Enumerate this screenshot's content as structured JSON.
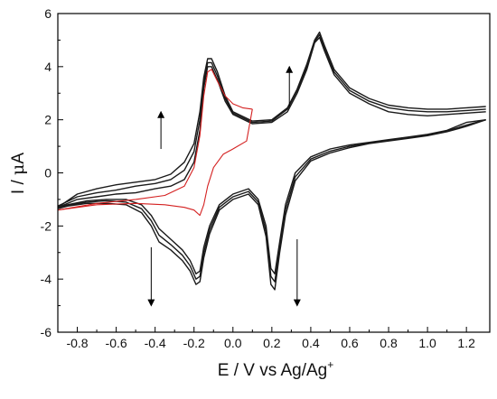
{
  "chart_data": {
    "type": "line",
    "title": "",
    "xlabel": "E / V vs Ag/Ag",
    "xlabel_sup": "+",
    "ylabel_prefix": "I / ",
    "ylabel_mu": "μ",
    "ylabel_unit": "A",
    "xlim": [
      -0.9,
      1.32
    ],
    "ylim": [
      -6,
      6
    ],
    "xticks": [
      -0.8,
      -0.6,
      -0.4,
      -0.2,
      0.0,
      0.2,
      0.4,
      0.6,
      0.8,
      1.0,
      1.2
    ],
    "xtick_labels": [
      "-0.8",
      "-0.6",
      "-0.4",
      "-0.2",
      "0.0",
      "0.2",
      "0.4",
      "0.6",
      "0.8",
      "1.0",
      "1.2"
    ],
    "yticks": [
      -6,
      -4,
      -2,
      0,
      2,
      4,
      6
    ],
    "ytick_labels": [
      "-6",
      "-4",
      "-2",
      "0",
      "2",
      "4",
      "6"
    ],
    "grid": false,
    "legend": "none",
    "colors": {
      "series_black": "#1a1a1a",
      "series_red": "#d42020",
      "axis": "#000000"
    },
    "series": [
      {
        "color": "#1a1a1a",
        "forward": [
          [
            -0.9,
            -1.3
          ],
          [
            -0.8,
            -1.0
          ],
          [
            -0.7,
            -0.9
          ],
          [
            -0.6,
            -0.8
          ],
          [
            -0.5,
            -0.75
          ],
          [
            -0.4,
            -0.6
          ],
          [
            -0.32,
            -0.5
          ],
          [
            -0.25,
            -0.25
          ],
          [
            -0.2,
            0.4
          ],
          [
            -0.17,
            1.6
          ],
          [
            -0.15,
            3.2
          ],
          [
            -0.13,
            4.0
          ],
          [
            -0.11,
            4.0
          ],
          [
            -0.08,
            3.5
          ],
          [
            -0.04,
            2.7
          ],
          [
            0.0,
            2.2
          ],
          [
            0.1,
            1.85
          ],
          [
            0.2,
            1.9
          ],
          [
            0.28,
            2.3
          ],
          [
            0.33,
            3.0
          ],
          [
            0.38,
            3.9
          ],
          [
            0.42,
            4.9
          ],
          [
            0.445,
            5.1
          ],
          [
            0.47,
            4.6
          ],
          [
            0.52,
            3.7
          ],
          [
            0.6,
            3.0
          ],
          [
            0.7,
            2.6
          ],
          [
            0.8,
            2.3
          ],
          [
            0.9,
            2.2
          ],
          [
            1.0,
            2.15
          ],
          [
            1.1,
            2.2
          ],
          [
            1.2,
            2.25
          ],
          [
            1.3,
            2.3
          ]
        ],
        "reverse": [
          [
            1.3,
            2.0
          ],
          [
            1.2,
            1.9
          ],
          [
            1.1,
            1.6
          ],
          [
            1.0,
            1.45
          ],
          [
            0.9,
            1.35
          ],
          [
            0.8,
            1.25
          ],
          [
            0.7,
            1.15
          ],
          [
            0.6,
            1.05
          ],
          [
            0.5,
            0.9
          ],
          [
            0.4,
            0.6
          ],
          [
            0.32,
            0.0
          ],
          [
            0.27,
            -1.2
          ],
          [
            0.24,
            -2.6
          ],
          [
            0.215,
            -3.8
          ],
          [
            0.195,
            -3.6
          ],
          [
            0.17,
            -2.0
          ],
          [
            0.13,
            -1.0
          ],
          [
            0.08,
            -0.6
          ],
          [
            0.0,
            -0.8
          ],
          [
            -0.07,
            -1.2
          ],
          [
            -0.12,
            -2.0
          ],
          [
            -0.15,
            -2.8
          ],
          [
            -0.17,
            -3.7
          ],
          [
            -0.19,
            -3.8
          ],
          [
            -0.22,
            -3.3
          ],
          [
            -0.26,
            -2.9
          ],
          [
            -0.32,
            -2.5
          ],
          [
            -0.38,
            -2.1
          ],
          [
            -0.42,
            -1.6
          ],
          [
            -0.47,
            -1.2
          ],
          [
            -0.55,
            -1.0
          ],
          [
            -0.65,
            -1.0
          ],
          [
            -0.75,
            -1.05
          ],
          [
            -0.85,
            -1.2
          ],
          [
            -0.9,
            -1.3
          ]
        ]
      },
      {
        "color": "#1a1a1a",
        "forward": [
          [
            -0.9,
            -1.3
          ],
          [
            -0.8,
            -0.8
          ],
          [
            -0.7,
            -0.6
          ],
          [
            -0.6,
            -0.45
          ],
          [
            -0.5,
            -0.35
          ],
          [
            -0.4,
            -0.25
          ],
          [
            -0.32,
            -0.05
          ],
          [
            -0.25,
            0.4
          ],
          [
            -0.2,
            1.1
          ],
          [
            -0.17,
            2.3
          ],
          [
            -0.15,
            3.6
          ],
          [
            -0.13,
            4.3
          ],
          [
            -0.11,
            4.3
          ],
          [
            -0.08,
            3.8
          ],
          [
            -0.04,
            2.9
          ],
          [
            0.0,
            2.3
          ],
          [
            0.1,
            1.95
          ],
          [
            0.2,
            2.0
          ],
          [
            0.28,
            2.45
          ],
          [
            0.33,
            3.15
          ],
          [
            0.38,
            4.1
          ],
          [
            0.42,
            5.0
          ],
          [
            0.445,
            5.3
          ],
          [
            0.47,
            4.8
          ],
          [
            0.52,
            3.9
          ],
          [
            0.6,
            3.2
          ],
          [
            0.7,
            2.8
          ],
          [
            0.8,
            2.55
          ],
          [
            0.9,
            2.45
          ],
          [
            1.0,
            2.4
          ],
          [
            1.1,
            2.4
          ],
          [
            1.2,
            2.45
          ],
          [
            1.3,
            2.5
          ]
        ],
        "reverse": [
          [
            1.3,
            2.0
          ],
          [
            1.2,
            1.75
          ],
          [
            1.1,
            1.55
          ],
          [
            1.0,
            1.4
          ],
          [
            0.9,
            1.3
          ],
          [
            0.8,
            1.2
          ],
          [
            0.7,
            1.1
          ],
          [
            0.6,
            0.95
          ],
          [
            0.5,
            0.75
          ],
          [
            0.4,
            0.45
          ],
          [
            0.32,
            -0.3
          ],
          [
            0.27,
            -1.6
          ],
          [
            0.24,
            -3.0
          ],
          [
            0.215,
            -4.4
          ],
          [
            0.195,
            -4.2
          ],
          [
            0.17,
            -2.4
          ],
          [
            0.13,
            -1.2
          ],
          [
            0.08,
            -0.8
          ],
          [
            0.0,
            -1.0
          ],
          [
            -0.07,
            -1.4
          ],
          [
            -0.12,
            -2.3
          ],
          [
            -0.15,
            -3.2
          ],
          [
            -0.17,
            -4.1
          ],
          [
            -0.19,
            -4.2
          ],
          [
            -0.22,
            -3.7
          ],
          [
            -0.26,
            -3.3
          ],
          [
            -0.32,
            -2.9
          ],
          [
            -0.38,
            -2.6
          ],
          [
            -0.42,
            -2.0
          ],
          [
            -0.47,
            -1.5
          ],
          [
            -0.55,
            -1.2
          ],
          [
            -0.65,
            -1.15
          ],
          [
            -0.75,
            -1.15
          ],
          [
            -0.85,
            -1.25
          ],
          [
            -0.9,
            -1.35
          ]
        ]
      },
      {
        "color": "#1a1a1a",
        "forward": [
          [
            -0.9,
            -1.25
          ],
          [
            -0.8,
            -0.9
          ],
          [
            -0.7,
            -0.75
          ],
          [
            -0.6,
            -0.65
          ],
          [
            -0.5,
            -0.5
          ],
          [
            -0.4,
            -0.4
          ],
          [
            -0.32,
            -0.25
          ],
          [
            -0.25,
            0.1
          ],
          [
            -0.2,
            0.8
          ],
          [
            -0.17,
            2.0
          ],
          [
            -0.15,
            3.4
          ],
          [
            -0.13,
            4.15
          ],
          [
            -0.11,
            4.15
          ],
          [
            -0.08,
            3.65
          ],
          [
            -0.04,
            2.8
          ],
          [
            0.0,
            2.25
          ],
          [
            0.1,
            1.9
          ],
          [
            0.2,
            1.95
          ],
          [
            0.28,
            2.4
          ],
          [
            0.33,
            3.1
          ],
          [
            0.38,
            4.0
          ],
          [
            0.42,
            4.95
          ],
          [
            0.445,
            5.2
          ],
          [
            0.47,
            4.7
          ],
          [
            0.52,
            3.8
          ],
          [
            0.6,
            3.1
          ],
          [
            0.7,
            2.7
          ],
          [
            0.8,
            2.45
          ],
          [
            0.9,
            2.35
          ],
          [
            1.0,
            2.3
          ],
          [
            1.1,
            2.3
          ],
          [
            1.2,
            2.35
          ],
          [
            1.3,
            2.4
          ]
        ],
        "reverse": [
          [
            1.3,
            2.0
          ],
          [
            1.2,
            1.8
          ],
          [
            1.1,
            1.58
          ],
          [
            1.0,
            1.42
          ],
          [
            0.9,
            1.32
          ],
          [
            0.8,
            1.22
          ],
          [
            0.7,
            1.12
          ],
          [
            0.6,
            1.0
          ],
          [
            0.5,
            0.82
          ],
          [
            0.4,
            0.52
          ],
          [
            0.32,
            -0.15
          ],
          [
            0.27,
            -1.4
          ],
          [
            0.24,
            -2.8
          ],
          [
            0.215,
            -4.1
          ],
          [
            0.195,
            -3.9
          ],
          [
            0.17,
            -2.2
          ],
          [
            0.13,
            -1.1
          ],
          [
            0.08,
            -0.7
          ],
          [
            0.0,
            -0.9
          ],
          [
            -0.07,
            -1.3
          ],
          [
            -0.12,
            -2.15
          ],
          [
            -0.15,
            -3.0
          ],
          [
            -0.17,
            -3.9
          ],
          [
            -0.19,
            -4.0
          ],
          [
            -0.22,
            -3.5
          ],
          [
            -0.26,
            -3.1
          ],
          [
            -0.32,
            -2.7
          ],
          [
            -0.38,
            -2.35
          ],
          [
            -0.42,
            -1.8
          ],
          [
            -0.47,
            -1.35
          ],
          [
            -0.55,
            -1.1
          ],
          [
            -0.65,
            -1.05
          ],
          [
            -0.75,
            -1.1
          ],
          [
            -0.85,
            -1.22
          ],
          [
            -0.9,
            -1.3
          ]
        ]
      },
      {
        "color": "#d42020",
        "forward": [
          [
            -0.9,
            -1.4
          ],
          [
            -0.7,
            -1.15
          ],
          [
            -0.5,
            -1.0
          ],
          [
            -0.35,
            -0.85
          ],
          [
            -0.25,
            -0.5
          ],
          [
            -0.2,
            0.2
          ],
          [
            -0.17,
            1.4
          ],
          [
            -0.15,
            2.9
          ],
          [
            -0.13,
            3.8
          ],
          [
            -0.11,
            3.9
          ],
          [
            -0.08,
            3.45
          ],
          [
            -0.04,
            2.9
          ],
          [
            0.0,
            2.6
          ],
          [
            0.05,
            2.45
          ],
          [
            0.1,
            2.4
          ]
        ],
        "reverse": [
          [
            0.1,
            2.4
          ],
          [
            0.07,
            1.2
          ],
          [
            0.0,
            0.9
          ],
          [
            -0.05,
            0.7
          ],
          [
            -0.1,
            0.2
          ],
          [
            -0.13,
            -0.5
          ],
          [
            -0.15,
            -1.2
          ],
          [
            -0.17,
            -1.6
          ],
          [
            -0.2,
            -1.4
          ],
          [
            -0.25,
            -1.3
          ],
          [
            -0.35,
            -1.2
          ],
          [
            -0.5,
            -1.15
          ],
          [
            -0.7,
            -1.2
          ],
          [
            -0.9,
            -1.4
          ]
        ]
      }
    ],
    "annotations": [
      {
        "label": "arrow-up",
        "x": -0.37,
        "y_from": 0.9,
        "y_to": 2.2
      },
      {
        "label": "arrow-down",
        "x": -0.42,
        "y_from": -2.8,
        "y_to": -4.9
      },
      {
        "label": "arrow-up",
        "x": 0.29,
        "y_from": 2.5,
        "y_to": 3.9
      },
      {
        "label": "arrow-down",
        "x": 0.33,
        "y_from": -2.5,
        "y_to": -4.9
      }
    ]
  }
}
